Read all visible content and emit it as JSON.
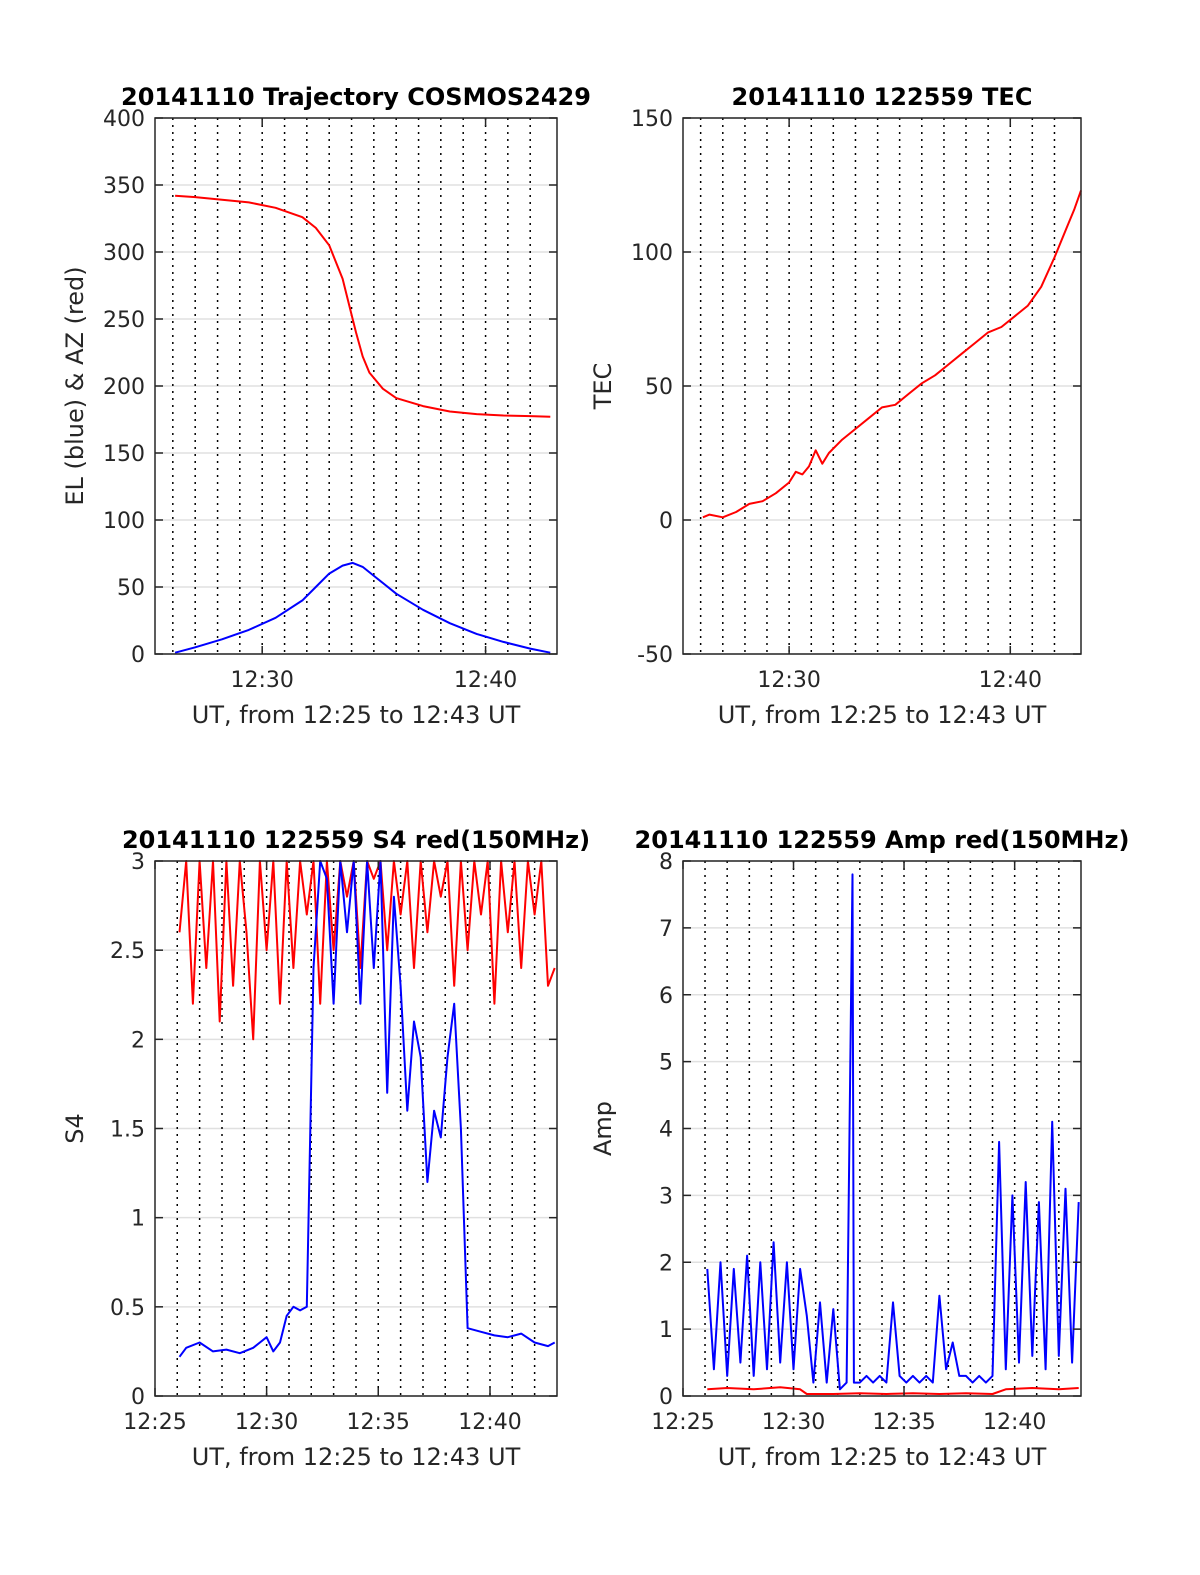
{
  "chart_data": [
    {
      "type": "line",
      "title": "20141110 Trajectory COSMOS2429",
      "xlabel": "UT, from 12:25 to 12:43 UT",
      "ylabel": "EL (blue) & AZ (red)",
      "xlim": [
        12.42,
        12.72
      ],
      "ylim": [
        0,
        400
      ],
      "yticks": [
        0,
        50,
        100,
        150,
        200,
        250,
        300,
        350,
        400
      ],
      "xticks": [
        {
          "v": 12.5,
          "label": "12:30"
        },
        {
          "v": 12.6667,
          "label": "12:40"
        }
      ],
      "vlines": [
        12.4333,
        12.45,
        12.4667,
        12.4833,
        12.5,
        12.5167,
        12.5333,
        12.55,
        12.5667,
        12.5833,
        12.6,
        12.6167,
        12.6333,
        12.65,
        12.6667,
        12.6833,
        12.7
      ],
      "grid": true,
      "series": [
        {
          "color": "#ff0000",
          "x": [
            12.435,
            12.45,
            12.47,
            12.49,
            12.51,
            12.53,
            12.54,
            12.55,
            12.56,
            12.565,
            12.57,
            12.575,
            12.58,
            12.59,
            12.6,
            12.62,
            12.64,
            12.66,
            12.68,
            12.7,
            12.715
          ],
          "y": [
            342,
            341,
            339,
            337,
            333,
            326,
            318,
            305,
            280,
            260,
            240,
            222,
            210,
            198,
            191,
            185,
            181,
            179,
            178,
            177.5,
            177
          ]
        },
        {
          "color": "#0000ff",
          "x": [
            12.435,
            12.45,
            12.47,
            12.49,
            12.51,
            12.53,
            12.54,
            12.55,
            12.56,
            12.5675,
            12.575,
            12.585,
            12.6,
            12.62,
            12.64,
            12.66,
            12.68,
            12.7,
            12.715
          ],
          "y": [
            1,
            5,
            11,
            18,
            27,
            40,
            50,
            60,
            66,
            68,
            65,
            57,
            45,
            33,
            23,
            15,
            9,
            4,
            1
          ]
        }
      ]
    },
    {
      "type": "line",
      "title": "20141110 122559 TEC",
      "xlabel": "UT, from 12:25 to 12:43 UT",
      "ylabel": "TEC",
      "xlim": [
        12.42,
        12.72
      ],
      "ylim": [
        -50,
        150
      ],
      "yticks": [
        -50,
        0,
        50,
        100,
        150
      ],
      "xticks": [
        {
          "v": 12.5,
          "label": "12:30"
        },
        {
          "v": 12.6667,
          "label": "12:40"
        }
      ],
      "vlines": [
        12.4333,
        12.45,
        12.4667,
        12.4833,
        12.5,
        12.5167,
        12.5333,
        12.55,
        12.5667,
        12.5833,
        12.6,
        12.6167,
        12.6333,
        12.65,
        12.6667,
        12.6833,
        12.7
      ],
      "grid": true,
      "series": [
        {
          "color": "#ff0000",
          "x": [
            12.435,
            12.44,
            12.45,
            12.46,
            12.47,
            12.48,
            12.49,
            12.5,
            12.505,
            12.51,
            12.515,
            12.52,
            12.525,
            12.53,
            12.54,
            12.55,
            12.56,
            12.57,
            12.58,
            12.59,
            12.6,
            12.61,
            12.62,
            12.63,
            12.64,
            12.65,
            12.66,
            12.67,
            12.68,
            12.69,
            12.7,
            12.71,
            12.715,
            12.72
          ],
          "y": [
            1,
            2,
            1,
            3,
            6,
            7,
            10,
            14,
            18,
            17,
            20,
            26,
            21,
            25,
            30,
            34,
            38,
            42,
            43,
            47,
            51,
            54,
            58,
            62,
            66,
            70,
            72,
            76,
            80,
            87,
            98,
            110,
            116,
            123
          ]
        }
      ]
    },
    {
      "type": "line",
      "title": "20141110 122559 S4 red(150MHz)",
      "xlabel": "UT, from 12:25 to 12:43 UT",
      "ylabel": "S4",
      "xlim": [
        12.4167,
        12.7167
      ],
      "ylim": [
        0,
        3
      ],
      "yticks": [
        0,
        0.5,
        1,
        1.5,
        2,
        2.5,
        3
      ],
      "xticks": [
        {
          "v": 12.4167,
          "label": "12:25"
        },
        {
          "v": 12.5,
          "label": "12:30"
        },
        {
          "v": 12.5833,
          "label": "12:35"
        },
        {
          "v": 12.6667,
          "label": "12:40"
        }
      ],
      "vlines": [
        12.4333,
        12.45,
        12.4667,
        12.4833,
        12.5,
        12.5167,
        12.5333,
        12.55,
        12.5667,
        12.5833,
        12.6,
        12.6167,
        12.6333,
        12.65,
        12.6667,
        12.6833,
        12.7
      ],
      "grid": true,
      "series": [
        {
          "color": "#ff0000",
          "x": [
            12.435,
            12.44,
            12.445,
            12.45,
            12.455,
            12.46,
            12.465,
            12.47,
            12.475,
            12.48,
            12.485,
            12.49,
            12.495,
            12.5,
            12.505,
            12.51,
            12.515,
            12.52,
            12.525,
            12.53,
            12.535,
            12.54,
            12.545,
            12.55,
            12.555,
            12.56,
            12.565,
            12.57,
            12.575,
            12.58,
            12.585,
            12.59,
            12.595,
            12.6,
            12.605,
            12.61,
            12.615,
            12.62,
            12.625,
            12.63,
            12.635,
            12.64,
            12.645,
            12.65,
            12.655,
            12.66,
            12.665,
            12.67,
            12.675,
            12.68,
            12.685,
            12.69,
            12.695,
            12.7,
            12.705,
            12.71,
            12.715
          ],
          "y": [
            2.6,
            3,
            2.2,
            3,
            2.4,
            3,
            2.1,
            3,
            2.3,
            3,
            2.6,
            2,
            3,
            2.5,
            3,
            2.2,
            3,
            2.4,
            3,
            2.7,
            3,
            2.2,
            3,
            2.5,
            3,
            2.8,
            3,
            2.4,
            3,
            2.9,
            3,
            2.5,
            3,
            2.7,
            3,
            2.4,
            3,
            2.6,
            3,
            2.8,
            3,
            2.3,
            3,
            2.5,
            3,
            2.7,
            3,
            2.2,
            3,
            2.6,
            3,
            2.4,
            3,
            2.7,
            3,
            2.3,
            2.4
          ]
        },
        {
          "color": "#0000ff",
          "x": [
            12.435,
            12.44,
            12.45,
            12.46,
            12.47,
            12.48,
            12.49,
            12.495,
            12.5,
            12.505,
            12.51,
            12.515,
            12.52,
            12.525,
            12.53,
            12.535,
            12.54,
            12.545,
            12.55,
            12.555,
            12.56,
            12.565,
            12.57,
            12.575,
            12.58,
            12.585,
            12.59,
            12.595,
            12.6,
            12.605,
            12.61,
            12.615,
            12.62,
            12.625,
            12.63,
            12.635,
            12.64,
            12.645,
            12.65,
            12.66,
            12.67,
            12.68,
            12.69,
            12.7,
            12.71,
            12.715
          ],
          "y": [
            0.22,
            0.27,
            0.3,
            0.25,
            0.26,
            0.24,
            0.27,
            0.3,
            0.33,
            0.25,
            0.3,
            0.45,
            0.5,
            0.48,
            0.5,
            2.4,
            3,
            2.9,
            2.2,
            3,
            2.6,
            3,
            2.2,
            3,
            2.4,
            3,
            1.7,
            2.8,
            2.3,
            1.6,
            2.1,
            1.9,
            1.2,
            1.6,
            1.45,
            1.9,
            2.2,
            1.5,
            0.38,
            0.36,
            0.34,
            0.33,
            0.35,
            0.3,
            0.28,
            0.3
          ]
        }
      ]
    },
    {
      "type": "line",
      "title": "20141110 122559 Amp red(150MHz)",
      "xlabel": "UT, from 12:25 to 12:43 UT",
      "ylabel": "Amp",
      "xlim": [
        12.4167,
        12.7167
      ],
      "ylim": [
        0,
        8
      ],
      "yticks": [
        0,
        1,
        2,
        3,
        4,
        5,
        6,
        7,
        8
      ],
      "xticks": [
        {
          "v": 12.4167,
          "label": "12:25"
        },
        {
          "v": 12.5,
          "label": "12:30"
        },
        {
          "v": 12.5833,
          "label": "12:35"
        },
        {
          "v": 12.6667,
          "label": "12:40"
        }
      ],
      "vlines": [
        12.4333,
        12.45,
        12.4667,
        12.4833,
        12.5,
        12.5167,
        12.5333,
        12.55,
        12.5667,
        12.5833,
        12.6,
        12.6167,
        12.6333,
        12.65,
        12.6667,
        12.6833,
        12.7
      ],
      "grid": true,
      "series": [
        {
          "color": "#ff0000",
          "x": [
            12.435,
            12.45,
            12.47,
            12.49,
            12.505,
            12.51,
            12.53,
            12.55,
            12.57,
            12.59,
            12.61,
            12.63,
            12.65,
            12.66,
            12.68,
            12.7,
            12.715
          ],
          "y": [
            0.1,
            0.12,
            0.1,
            0.13,
            0.1,
            0.03,
            0.03,
            0.04,
            0.03,
            0.04,
            0.03,
            0.04,
            0.03,
            0.1,
            0.12,
            0.1,
            0.12
          ]
        },
        {
          "color": "#0000ff",
          "x": [
            12.435,
            12.44,
            12.445,
            12.45,
            12.455,
            12.46,
            12.465,
            12.47,
            12.475,
            12.48,
            12.485,
            12.49,
            12.495,
            12.5,
            12.505,
            12.51,
            12.515,
            12.52,
            12.525,
            12.53,
            12.535,
            12.54,
            12.5445,
            12.5455,
            12.55,
            12.555,
            12.56,
            12.565,
            12.57,
            12.575,
            12.58,
            12.585,
            12.59,
            12.595,
            12.6,
            12.605,
            12.61,
            12.615,
            12.62,
            12.625,
            12.63,
            12.635,
            12.64,
            12.645,
            12.65,
            12.655,
            12.66,
            12.665,
            12.67,
            12.675,
            12.68,
            12.685,
            12.69,
            12.695,
            12.7,
            12.705,
            12.71,
            12.715
          ],
          "y": [
            1.9,
            0.4,
            2.0,
            0.3,
            1.9,
            0.5,
            2.1,
            0.3,
            2.0,
            0.4,
            2.3,
            0.5,
            2.0,
            0.4,
            1.9,
            1.2,
            0.2,
            1.4,
            0.2,
            1.3,
            0.1,
            0.2,
            7.8,
            0.2,
            0.2,
            0.3,
            0.2,
            0.3,
            0.2,
            1.4,
            0.3,
            0.2,
            0.3,
            0.2,
            0.3,
            0.2,
            1.5,
            0.4,
            0.8,
            0.3,
            0.3,
            0.2,
            0.3,
            0.2,
            0.3,
            3.8,
            0.4,
            3.0,
            0.5,
            3.2,
            0.6,
            2.9,
            0.4,
            4.1,
            0.6,
            3.1,
            0.5,
            2.9
          ]
        }
      ]
    }
  ]
}
